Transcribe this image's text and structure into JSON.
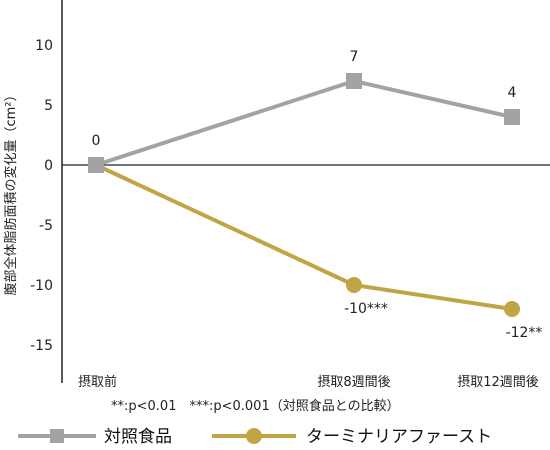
{
  "chart_data": {
    "type": "line",
    "categories": [
      "摂取前",
      "摂取8週間後",
      "摂取12週間後"
    ],
    "ylabel": "腹部全体脂肪面積の変化量（cm²）",
    "ylim": [
      -17,
      13
    ],
    "yticks": [
      10,
      5,
      0,
      -5,
      -10,
      -15
    ],
    "grid": false,
    "legend_position": "bottom",
    "footnote": "**:p<0.01　***:p<0.001（対照食品との比較）",
    "series": [
      {
        "name": "対照食品",
        "values": [
          0,
          7,
          4
        ],
        "labels": [
          "0",
          "7",
          "4"
        ],
        "color": "#a3a3a3",
        "marker": "square"
      },
      {
        "name": "ターミナリアファースト",
        "values": [
          0,
          -10,
          -12
        ],
        "labels": [
          "",
          "-10***",
          "-12**"
        ],
        "color": "#c1a444",
        "marker": "circle"
      }
    ]
  }
}
